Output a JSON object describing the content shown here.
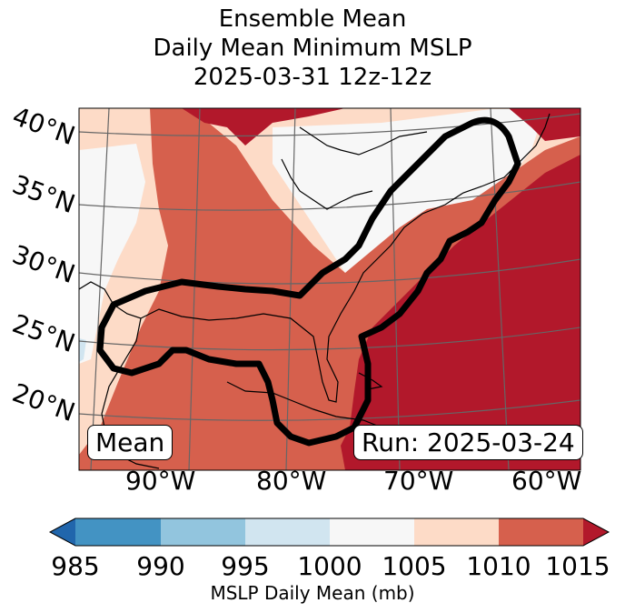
{
  "title": {
    "line1": "Ensemble Mean",
    "line2": "Daily Mean Minimum MSLP",
    "line3": "2025-03-31 12z-12z"
  },
  "map": {
    "lat_labels": [
      "40°N",
      "35°N",
      "30°N",
      "25°N",
      "20°N"
    ],
    "lon_labels": [
      "90°W",
      "80°W",
      "70°W",
      "60°W"
    ],
    "badge_left": "Mean",
    "badge_right": "Run: 2025-03-24"
  },
  "colorbar": {
    "ticks": [
      "985",
      "990",
      "995",
      "1000",
      "1005",
      "1010",
      "1015"
    ],
    "label": "MSLP Daily Mean (mb)",
    "colors": {
      "under": "#2166ac",
      "c985_990": "#4393c3",
      "c990_995": "#92c5de",
      "c995_1000": "#d1e5f0",
      "c1000_1005": "#f7f7f7",
      "c1005_1010": "#fddbc7",
      "c1010_1015": "#d6604d",
      "over": "#b2182b"
    }
  }
}
